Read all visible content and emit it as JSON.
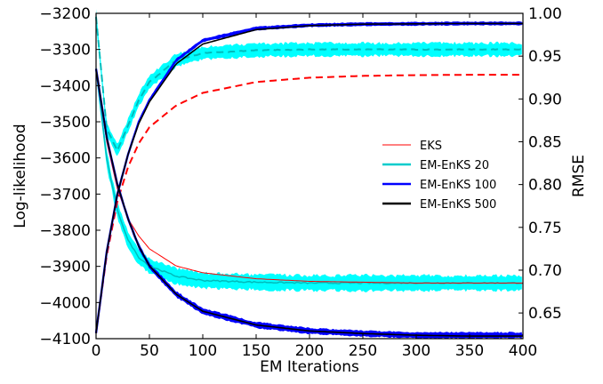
{
  "chart_data": {
    "type": "line",
    "xlabel": "EM Iterations",
    "ylabel_left": "Log-likelihood",
    "ylabel_right": "RMSE",
    "xlim": [
      0,
      400
    ],
    "ylim_left": [
      -4100,
      -3200
    ],
    "ylim_right": [
      0.62,
      1.0
    ],
    "xticks": [
      "0",
      "50",
      "100",
      "150",
      "200",
      "250",
      "300",
      "350",
      "400"
    ],
    "yticks_left": [
      "-3200",
      "-3300",
      "-3400",
      "-3500",
      "-3600",
      "-3700",
      "-3800",
      "-3900",
      "-4000",
      "-4100"
    ],
    "yticks_right": [
      "1.00",
      "0.95",
      "0.90",
      "0.85",
      "0.80",
      "0.75",
      "0.70",
      "0.65"
    ],
    "legend_position": "center-right",
    "colors": {
      "EKS": "#ff0000",
      "EM-EnKS 20": "#00cccc",
      "EM-EnKS 100": "#0000ff",
      "EM-EnKS 500": "#000000",
      "band20": "#00ffff",
      "band100": "#0000ff"
    },
    "series": [
      {
        "name": "EKS",
        "metric": "RMSE",
        "axis": "right",
        "style": "solid",
        "x": [
          0,
          10,
          20,
          30,
          40,
          50,
          75,
          100,
          150,
          200,
          250,
          300,
          350,
          400
        ],
        "values": [
          0.935,
          0.85,
          0.795,
          0.76,
          0.74,
          0.725,
          0.705,
          0.697,
          0.69,
          0.687,
          0.686,
          0.685,
          0.685,
          0.685
        ]
      },
      {
        "name": "EKS",
        "metric": "Log-likelihood",
        "axis": "left",
        "style": "dashed",
        "x": [
          0,
          10,
          20,
          30,
          40,
          50,
          75,
          100,
          150,
          200,
          250,
          300,
          350,
          400
        ],
        "values": [
          -4085,
          -3870,
          -3720,
          -3625,
          -3560,
          -3515,
          -3455,
          -3420,
          -3390,
          -3378,
          -3373,
          -3371,
          -3370,
          -3370
        ]
      },
      {
        "name": "EM-EnKS 20",
        "metric": "RMSE",
        "axis": "right",
        "style": "solid",
        "x": [
          0,
          10,
          20,
          30,
          40,
          50,
          75,
          100,
          150,
          200,
          250,
          300,
          350,
          400
        ],
        "values": [
          0.935,
          0.83,
          0.77,
          0.735,
          0.715,
          0.705,
          0.693,
          0.688,
          0.686,
          0.685,
          0.685,
          0.685,
          0.685,
          0.685
        ]
      },
      {
        "name": "EM-EnKS 20",
        "metric": "Log-likelihood",
        "axis": "left",
        "style": "dashed",
        "x": [
          0,
          10,
          20,
          30,
          40,
          50,
          75,
          100,
          150,
          200,
          250,
          300,
          350,
          400
        ],
        "values": [
          -3210,
          -3520,
          -3580,
          -3510,
          -3440,
          -3390,
          -3330,
          -3310,
          -3302,
          -3300,
          -3300,
          -3300,
          -3300,
          -3300
        ]
      },
      {
        "name": "EM-EnKS 100",
        "metric": "RMSE",
        "axis": "right",
        "style": "solid",
        "x": [
          0,
          10,
          20,
          30,
          40,
          50,
          75,
          100,
          150,
          200,
          250,
          300,
          350,
          400
        ],
        "values": [
          0.935,
          0.855,
          0.8,
          0.76,
          0.728,
          0.705,
          0.672,
          0.652,
          0.636,
          0.629,
          0.626,
          0.624,
          0.624,
          0.624
        ]
      },
      {
        "name": "EM-EnKS 100",
        "metric": "Log-likelihood",
        "axis": "left",
        "style": "solid",
        "x": [
          0,
          10,
          20,
          30,
          40,
          50,
          75,
          100,
          150,
          200,
          250,
          300,
          350,
          400
        ],
        "values": [
          -4085,
          -3860,
          -3700,
          -3590,
          -3500,
          -3440,
          -3330,
          -3275,
          -3242,
          -3233,
          -3230,
          -3229,
          -3228,
          -3228
        ]
      },
      {
        "name": "EM-EnKS 500",
        "metric": "RMSE",
        "axis": "right",
        "style": "solid",
        "x": [
          0,
          10,
          20,
          30,
          40,
          50,
          75,
          100,
          150,
          200,
          250,
          300,
          350,
          400
        ],
        "values": [
          0.935,
          0.855,
          0.8,
          0.76,
          0.728,
          0.705,
          0.672,
          0.652,
          0.636,
          0.629,
          0.626,
          0.624,
          0.623,
          0.623
        ]
      },
      {
        "name": "EM-EnKS 500",
        "metric": "Log-likelihood",
        "axis": "left",
        "style": "solid",
        "x": [
          0,
          10,
          20,
          30,
          40,
          50,
          75,
          100,
          150,
          200,
          250,
          300,
          350,
          400
        ],
        "values": [
          -4085,
          -3860,
          -3700,
          -3590,
          -3505,
          -3445,
          -3340,
          -3285,
          -3245,
          -3234,
          -3230,
          -3229,
          -3228,
          -3228
        ]
      }
    ],
    "legend": [
      "EKS",
      "EM-EnKS 20",
      "EM-EnKS 100",
      "EM-EnKS 500"
    ]
  }
}
